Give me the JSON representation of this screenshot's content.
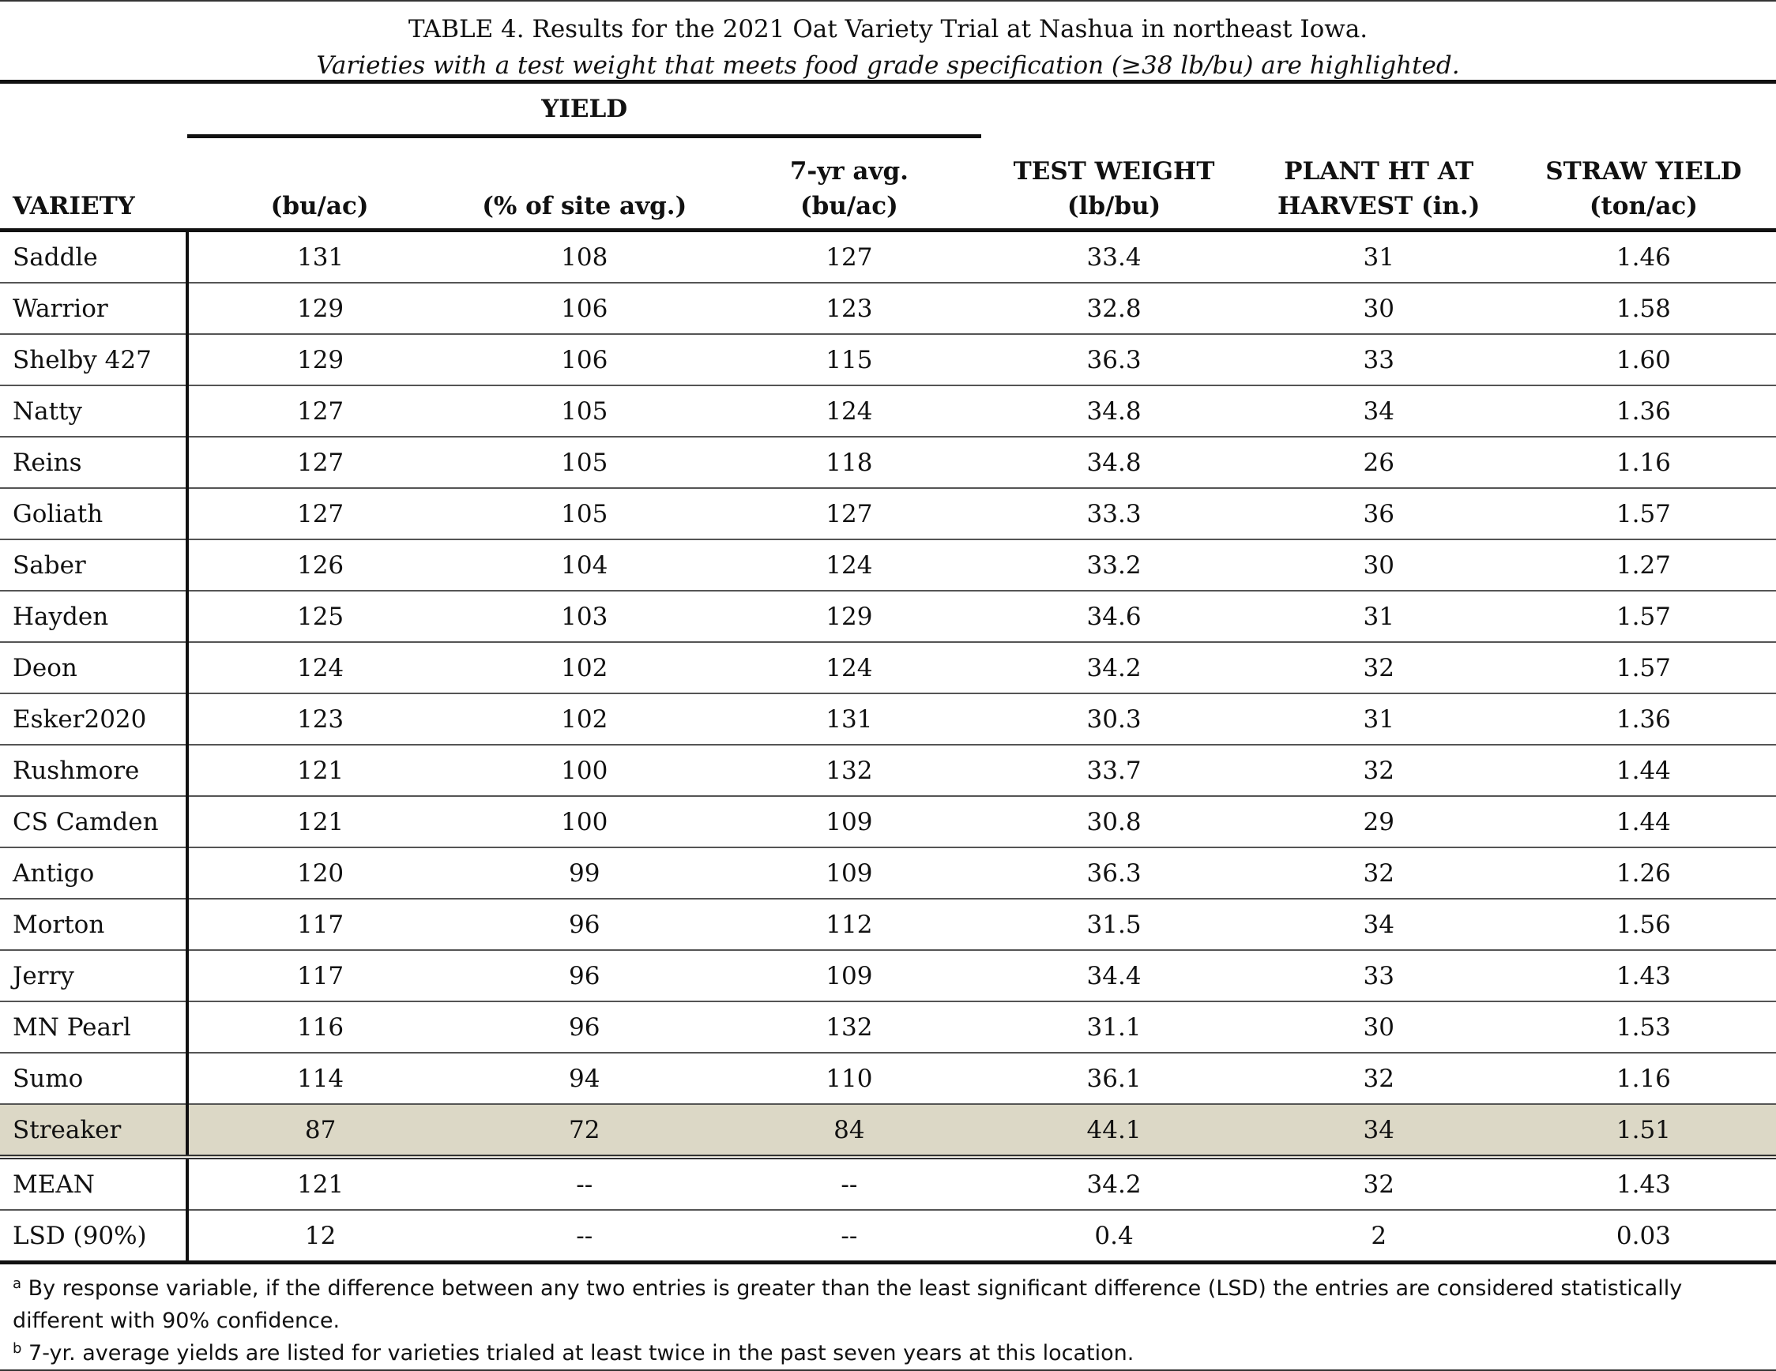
{
  "title": "TABLE 4. Results for the 2021 Oat Variety Trial at Nashua in northeast Iowa.",
  "subtitle": "Varieties with a test weight that meets food grade specification (≥38 lb/bu) are highlighted.",
  "table": {
    "group_header": "YIELD",
    "columns": [
      [
        "VARIETY"
      ],
      [
        "(bu/ac)"
      ],
      [
        "(% of site avg.)"
      ],
      [
        "7-yr avg.",
        "(bu/ac)"
      ],
      [
        "TEST WEIGHT",
        "(lb/bu)"
      ],
      [
        "PLANT HT AT",
        "HARVEST (in.)"
      ],
      [
        "STRAW YIELD",
        "(ton/ac)"
      ]
    ],
    "rows": [
      [
        "Saddle",
        "131",
        "108",
        "127",
        "33.4",
        "31",
        "1.46"
      ],
      [
        "Warrior",
        "129",
        "106",
        "123",
        "32.8",
        "30",
        "1.58"
      ],
      [
        "Shelby 427",
        "129",
        "106",
        "115",
        "36.3",
        "33",
        "1.60"
      ],
      [
        "Natty",
        "127",
        "105",
        "124",
        "34.8",
        "34",
        "1.36"
      ],
      [
        "Reins",
        "127",
        "105",
        "118",
        "34.8",
        "26",
        "1.16"
      ],
      [
        "Goliath",
        "127",
        "105",
        "127",
        "33.3",
        "36",
        "1.57"
      ],
      [
        "Saber",
        "126",
        "104",
        "124",
        "33.2",
        "30",
        "1.27"
      ],
      [
        "Hayden",
        "125",
        "103",
        "129",
        "34.6",
        "31",
        "1.57"
      ],
      [
        "Deon",
        "124",
        "102",
        "124",
        "34.2",
        "32",
        "1.57"
      ],
      [
        "Esker2020",
        "123",
        "102",
        "131",
        "30.3",
        "31",
        "1.36"
      ],
      [
        "Rushmore",
        "121",
        "100",
        "132",
        "33.7",
        "32",
        "1.44"
      ],
      [
        "CS Camden",
        "121",
        "100",
        "109",
        "30.8",
        "29",
        "1.44"
      ],
      [
        "Antigo",
        "120",
        "99",
        "109",
        "36.3",
        "32",
        "1.26"
      ],
      [
        "Morton",
        "117",
        "96",
        "112",
        "31.5",
        "34",
        "1.56"
      ],
      [
        "Jerry",
        "117",
        "96",
        "109",
        "34.4",
        "33",
        "1.43"
      ],
      [
        "MN Pearl",
        "116",
        "96",
        "132",
        "31.1",
        "30",
        "1.53"
      ],
      [
        "Sumo",
        "114",
        "94",
        "110",
        "36.1",
        "32",
        "1.16"
      ],
      [
        "Streaker",
        "87",
        "72",
        "84",
        "44.1",
        "34",
        "1.51"
      ]
    ],
    "highlighted_rows": [
      17
    ],
    "highlight_color": "#dcd8c6",
    "summary_rows": [
      [
        "MEAN",
        "121",
        "--",
        "--",
        "34.2",
        "32",
        "1.43"
      ],
      [
        "LSD (90%)",
        "12",
        "--",
        "--",
        "0.4",
        "2",
        "0.03"
      ]
    ]
  },
  "footnotes": [
    {
      "mark": "a",
      "text": "By response variable, if the difference between any two entries is greater than the least significant difference (LSD) the entries are considered statistically different with 90% confidence."
    },
    {
      "mark": "b",
      "text": "7-yr. average yields are listed for varieties trialed at least twice in the past seven years at this location."
    }
  ]
}
